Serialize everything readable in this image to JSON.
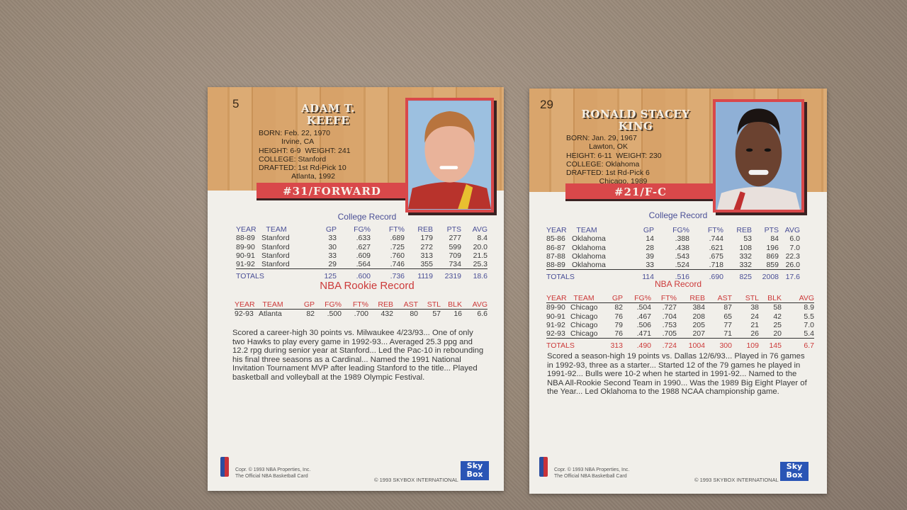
{
  "cards": [
    {
      "number": "5",
      "name1": "Adam T.",
      "name2": "Keefe",
      "bio": "BORN: Feb. 22, 1970\n           Irvine, CA\nHEIGHT: 6-9  WEIGHT: 241\nCOLLEGE: Stanford\nDRAFTED: 1st Rd-Pick 10\n                Atlanta, 1992",
      "banner": "#31/FORWARD",
      "college_title": "College Record",
      "college_headers": [
        "YEAR",
        "TEAM",
        "GP",
        "FG%",
        "FT%",
        "REB",
        "PTS",
        "AVG"
      ],
      "college_rows": [
        [
          "88-89",
          "Stanford",
          "33",
          ".633",
          ".689",
          "179",
          "277",
          "8.4"
        ],
        [
          "89-90",
          "Stanford",
          "30",
          ".627",
          ".725",
          "272",
          "599",
          "20.0"
        ],
        [
          "90-91",
          "Stanford",
          "33",
          ".609",
          ".760",
          "313",
          "709",
          "21.5"
        ],
        [
          "91-92",
          "Stanford",
          "29",
          ".564",
          ".746",
          "355",
          "734",
          "25.3"
        ]
      ],
      "college_totals": [
        "TOTALS",
        "",
        "125",
        ".600",
        ".736",
        "1119",
        "2319",
        "18.6"
      ],
      "nba_title": "NBA Rookie Record",
      "nba_headers": [
        "YEAR",
        "TEAM",
        "GP",
        "FG%",
        "FT%",
        "REB",
        "AST",
        "STL",
        "BLK",
        "AVG"
      ],
      "nba_rows": [
        [
          "92-93",
          "Atlanta",
          "82",
          ".500",
          ".700",
          "432",
          "80",
          "57",
          "16",
          "6.6"
        ]
      ],
      "nba_totals": null,
      "paragraph": "Scored a career-high 30 points vs. Milwaukee 4/23/93... One of only two Hawks to play every game in 1992-93... Averaged 25.3 ppg and 12.2 rpg during senior year at Stanford... Led the Pac-10 in rebounding his final three seasons as a Cardinal... Named the 1991 National Invitation Tournament MVP after leading Stanford to the title... Played basketball and volleyball at the 1989 Olympic Festival.",
      "copyright1": "Copr. © 1993 NBA Properties, Inc.",
      "copyright2": "The Official NBA Basketball Card",
      "skybox_text": "© 1993 SKYBOX INTERNATIONAL",
      "skybox_logo": "Sky Box",
      "tm": "TM"
    },
    {
      "number": "29",
      "name1": "Ronald Stacey",
      "name2": "King",
      "bio": "BORN: Jan. 29, 1967\n           Lawton, OK\nHEIGHT: 6-11  WEIGHT: 230\nCOLLEGE: Oklahoma\nDRAFTED: 1st Rd-Pick 6\n                Chicago, 1989",
      "banner": "#21/F-C",
      "college_title": "College Record",
      "college_headers": [
        "YEAR",
        "TEAM",
        "GP",
        "FG%",
        "FT%",
        "REB",
        "PTS",
        "AVG"
      ],
      "college_rows": [
        [
          "85-86",
          "Oklahoma",
          "14",
          ".388",
          ".744",
          "53",
          "84",
          "6.0"
        ],
        [
          "86-87",
          "Oklahoma",
          "28",
          ".438",
          ".621",
          "108",
          "196",
          "7.0"
        ],
        [
          "87-88",
          "Oklahoma",
          "39",
          ".543",
          ".675",
          "332",
          "869",
          "22.3"
        ],
        [
          "88-89",
          "Oklahoma",
          "33",
          ".524",
          ".718",
          "332",
          "859",
          "26.0"
        ]
      ],
      "college_totals": [
        "TOTALS",
        "",
        "114",
        ".516",
        ".690",
        "825",
        "2008",
        "17.6"
      ],
      "nba_title": "NBA Record",
      "nba_headers": [
        "YEAR",
        "TEAM",
        "GP",
        "FG%",
        "FT%",
        "REB",
        "AST",
        "STL",
        "BLK",
        "AVG"
      ],
      "nba_rows": [
        [
          "89-90",
          "Chicago",
          "82",
          ".504",
          ".727",
          "384",
          "87",
          "38",
          "58",
          "8.9"
        ],
        [
          "90-91",
          "Chicago",
          "76",
          ".467",
          ".704",
          "208",
          "65",
          "24",
          "42",
          "5.5"
        ],
        [
          "91-92",
          "Chicago",
          "79",
          ".506",
          ".753",
          "205",
          "77",
          "21",
          "25",
          "7.0"
        ],
        [
          "92-93",
          "Chicago",
          "76",
          ".471",
          ".705",
          "207",
          "71",
          "26",
          "20",
          "5.4"
        ]
      ],
      "nba_totals": [
        "TOTALS",
        "",
        "313",
        ".490",
        ".724",
        "1004",
        "300",
        "109",
        "145",
        "6.7"
      ],
      "paragraph": "Scored a season-high 19 points vs. Dallas 12/6/93... Played in 76 games in 1992-93, three as a starter... Started 12 of the 79 games he played in 1991-92... Bulls were 10-2 when he started in 1991-92... Named to the NBA All-Rookie Second Team in 1990... Was the 1989 Big Eight Player of the Year... Led Oklahoma to the 1988 NCAA championship game.",
      "copyright1": "Copr. © 1993 NBA Properties, Inc.",
      "copyright2": "The Official NBA Basketball Card",
      "skybox_text": "© 1993 SKYBOX INTERNATIONAL",
      "skybox_logo": "Sky Box",
      "tm": "TM"
    }
  ],
  "colors": {
    "banner": "#d9484a",
    "college_text": "#4a4f96",
    "nba_text": "#cc3a3a",
    "card": "#f1efea"
  }
}
